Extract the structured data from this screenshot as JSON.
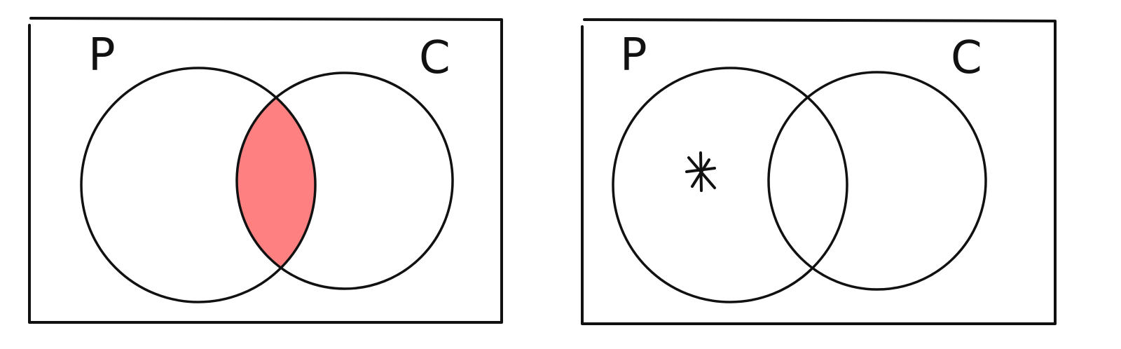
{
  "diagrams": [
    {
      "set_a_label": "P",
      "set_b_label": "C",
      "shaded_region": "intersection",
      "shade_color": "#ff8080",
      "marker": ""
    },
    {
      "set_a_label": "P",
      "set_b_label": "C",
      "shaded_region": "none",
      "shade_color": "",
      "marker": "*"
    }
  ]
}
